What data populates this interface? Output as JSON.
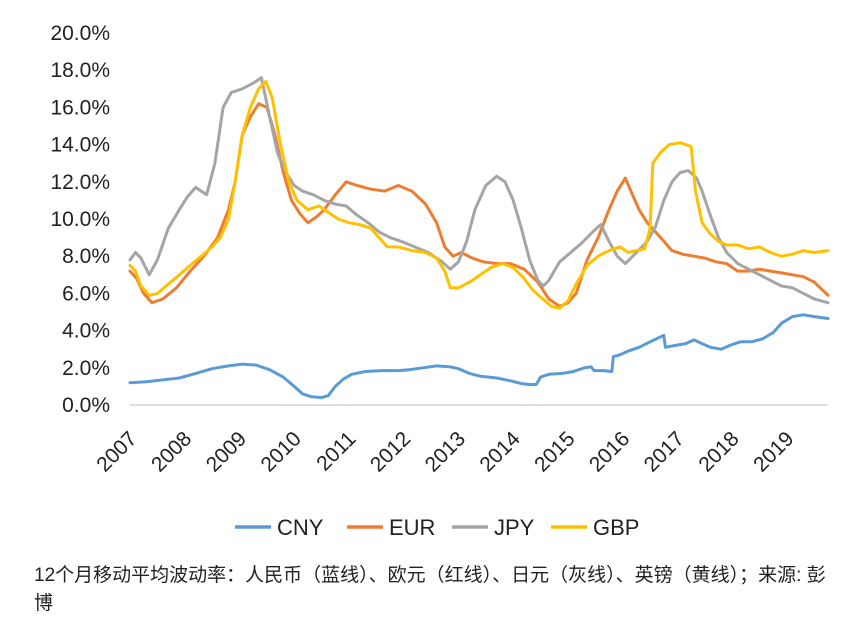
{
  "chart_data": {
    "type": "line",
    "title": "",
    "xlabel": "",
    "ylabel": "",
    "ylim": [
      0,
      20
    ],
    "xlim": [
      2007.0,
      2019.75
    ],
    "y_ticks": [
      "0.0%",
      "2.0%",
      "4.0%",
      "6.0%",
      "8.0%",
      "10.0%",
      "12.0%",
      "14.0%",
      "16.0%",
      "18.0%",
      "20.0%"
    ],
    "x_ticks": [
      "2007",
      "2008",
      "2009",
      "2010",
      "2011",
      "2012",
      "2013",
      "2014",
      "2015",
      "2016",
      "2017",
      "2018",
      "2019"
    ],
    "grid": false,
    "legend_position": "bottom",
    "series": [
      {
        "name": "CNY",
        "color": "#5B9BD5",
        "points": [
          [
            2007.0,
            1.2
          ],
          [
            2007.3,
            1.25
          ],
          [
            2007.6,
            1.35
          ],
          [
            2007.9,
            1.45
          ],
          [
            2008.2,
            1.7
          ],
          [
            2008.5,
            1.95
          ],
          [
            2008.8,
            2.1
          ],
          [
            2009.05,
            2.2
          ],
          [
            2009.3,
            2.15
          ],
          [
            2009.55,
            1.9
          ],
          [
            2009.8,
            1.5
          ],
          [
            2010.0,
            1.0
          ],
          [
            2010.15,
            0.6
          ],
          [
            2010.3,
            0.45
          ],
          [
            2010.5,
            0.4
          ],
          [
            2010.62,
            0.5
          ],
          [
            2010.75,
            1.0
          ],
          [
            2010.9,
            1.4
          ],
          [
            2011.05,
            1.65
          ],
          [
            2011.3,
            1.8
          ],
          [
            2011.6,
            1.85
          ],
          [
            2011.9,
            1.85
          ],
          [
            2012.1,
            1.9
          ],
          [
            2012.35,
            2.0
          ],
          [
            2012.6,
            2.1
          ],
          [
            2012.85,
            2.05
          ],
          [
            2013.0,
            1.95
          ],
          [
            2013.2,
            1.7
          ],
          [
            2013.4,
            1.55
          ],
          [
            2013.7,
            1.45
          ],
          [
            2013.95,
            1.3
          ],
          [
            2014.15,
            1.15
          ],
          [
            2014.3,
            1.1
          ],
          [
            2014.42,
            1.1
          ],
          [
            2014.5,
            1.5
          ],
          [
            2014.65,
            1.65
          ],
          [
            2014.9,
            1.7
          ],
          [
            2015.1,
            1.8
          ],
          [
            2015.3,
            2.0
          ],
          [
            2015.42,
            2.05
          ],
          [
            2015.48,
            1.85
          ],
          [
            2015.65,
            1.85
          ],
          [
            2015.8,
            1.8
          ],
          [
            2015.83,
            2.6
          ],
          [
            2015.95,
            2.7
          ],
          [
            2016.1,
            2.9
          ],
          [
            2016.3,
            3.1
          ],
          [
            2016.5,
            3.4
          ],
          [
            2016.75,
            3.75
          ],
          [
            2016.78,
            3.1
          ],
          [
            2016.95,
            3.2
          ],
          [
            2017.15,
            3.3
          ],
          [
            2017.3,
            3.5
          ],
          [
            2017.45,
            3.3
          ],
          [
            2017.6,
            3.1
          ],
          [
            2017.8,
            3.0
          ],
          [
            2017.95,
            3.2
          ],
          [
            2018.15,
            3.4
          ],
          [
            2018.35,
            3.4
          ],
          [
            2018.55,
            3.55
          ],
          [
            2018.75,
            3.9
          ],
          [
            2018.9,
            4.4
          ],
          [
            2019.1,
            4.75
          ],
          [
            2019.3,
            4.85
          ],
          [
            2019.5,
            4.75
          ],
          [
            2019.75,
            4.65
          ]
        ]
      },
      {
        "name": "EUR",
        "color": "#ED7D31",
        "points": [
          [
            2007.0,
            7.2
          ],
          [
            2007.12,
            6.8
          ],
          [
            2007.25,
            6.0
          ],
          [
            2007.4,
            5.5
          ],
          [
            2007.6,
            5.7
          ],
          [
            2007.85,
            6.3
          ],
          [
            2008.1,
            7.2
          ],
          [
            2008.35,
            8.0
          ],
          [
            2008.6,
            9.0
          ],
          [
            2008.8,
            10.5
          ],
          [
            2008.92,
            12.0
          ],
          [
            2009.05,
            14.5
          ],
          [
            2009.2,
            15.5
          ],
          [
            2009.35,
            16.2
          ],
          [
            2009.5,
            16.0
          ],
          [
            2009.65,
            14.5
          ],
          [
            2009.8,
            12.5
          ],
          [
            2009.95,
            11.0
          ],
          [
            2010.1,
            10.3
          ],
          [
            2010.25,
            9.8
          ],
          [
            2010.4,
            10.1
          ],
          [
            2010.55,
            10.5
          ],
          [
            2010.75,
            11.3
          ],
          [
            2010.95,
            12.0
          ],
          [
            2011.15,
            11.8
          ],
          [
            2011.4,
            11.6
          ],
          [
            2011.65,
            11.5
          ],
          [
            2011.9,
            11.8
          ],
          [
            2012.15,
            11.5
          ],
          [
            2012.4,
            10.8
          ],
          [
            2012.6,
            9.8
          ],
          [
            2012.75,
            8.5
          ],
          [
            2012.9,
            8.0
          ],
          [
            2013.05,
            8.2
          ],
          [
            2013.25,
            7.9
          ],
          [
            2013.45,
            7.7
          ],
          [
            2013.7,
            7.6
          ],
          [
            2013.95,
            7.6
          ],
          [
            2014.2,
            7.3
          ],
          [
            2014.45,
            6.6
          ],
          [
            2014.65,
            5.7
          ],
          [
            2014.85,
            5.3
          ],
          [
            2015.0,
            5.5
          ],
          [
            2015.15,
            6.0
          ],
          [
            2015.35,
            7.8
          ],
          [
            2015.55,
            9.0
          ],
          [
            2015.75,
            10.5
          ],
          [
            2015.9,
            11.5
          ],
          [
            2016.05,
            12.2
          ],
          [
            2016.15,
            11.5
          ],
          [
            2016.3,
            10.5
          ],
          [
            2016.45,
            9.8
          ],
          [
            2016.6,
            9.3
          ],
          [
            2016.75,
            8.8
          ],
          [
            2016.9,
            8.3
          ],
          [
            2017.1,
            8.1
          ],
          [
            2017.3,
            8.0
          ],
          [
            2017.5,
            7.9
          ],
          [
            2017.7,
            7.7
          ],
          [
            2017.9,
            7.6
          ],
          [
            2018.1,
            7.2
          ],
          [
            2018.3,
            7.2
          ],
          [
            2018.5,
            7.3
          ],
          [
            2018.7,
            7.2
          ],
          [
            2018.9,
            7.1
          ],
          [
            2019.1,
            7.0
          ],
          [
            2019.3,
            6.9
          ],
          [
            2019.5,
            6.6
          ],
          [
            2019.75,
            5.9
          ]
        ]
      },
      {
        "name": "JPY",
        "color": "#A5A5A5",
        "points": [
          [
            2007.0,
            7.8
          ],
          [
            2007.1,
            8.2
          ],
          [
            2007.2,
            7.9
          ],
          [
            2007.35,
            7.0
          ],
          [
            2007.5,
            7.8
          ],
          [
            2007.7,
            9.5
          ],
          [
            2007.9,
            10.5
          ],
          [
            2008.05,
            11.2
          ],
          [
            2008.2,
            11.7
          ],
          [
            2008.4,
            11.3
          ],
          [
            2008.55,
            13.0
          ],
          [
            2008.7,
            16.0
          ],
          [
            2008.85,
            16.8
          ],
          [
            2009.05,
            17.0
          ],
          [
            2009.25,
            17.3
          ],
          [
            2009.4,
            17.6
          ],
          [
            2009.55,
            15.5
          ],
          [
            2009.7,
            13.5
          ],
          [
            2009.85,
            12.5
          ],
          [
            2010.0,
            11.8
          ],
          [
            2010.15,
            11.5
          ],
          [
            2010.35,
            11.3
          ],
          [
            2010.55,
            11.0
          ],
          [
            2010.75,
            10.8
          ],
          [
            2010.95,
            10.7
          ],
          [
            2011.15,
            10.2
          ],
          [
            2011.35,
            9.8
          ],
          [
            2011.55,
            9.3
          ],
          [
            2011.75,
            9.0
          ],
          [
            2011.95,
            8.8
          ],
          [
            2012.2,
            8.5
          ],
          [
            2012.45,
            8.2
          ],
          [
            2012.7,
            7.7
          ],
          [
            2012.85,
            7.3
          ],
          [
            2013.0,
            7.7
          ],
          [
            2013.15,
            8.8
          ],
          [
            2013.3,
            10.5
          ],
          [
            2013.5,
            11.8
          ],
          [
            2013.7,
            12.3
          ],
          [
            2013.85,
            12.0
          ],
          [
            2014.0,
            11.0
          ],
          [
            2014.15,
            9.5
          ],
          [
            2014.3,
            7.8
          ],
          [
            2014.45,
            6.7
          ],
          [
            2014.55,
            6.4
          ],
          [
            2014.65,
            6.7
          ],
          [
            2014.85,
            7.7
          ],
          [
            2015.05,
            8.2
          ],
          [
            2015.25,
            8.7
          ],
          [
            2015.45,
            9.3
          ],
          [
            2015.6,
            9.7
          ],
          [
            2015.75,
            8.8
          ],
          [
            2015.9,
            8.0
          ],
          [
            2016.05,
            7.6
          ],
          [
            2016.25,
            8.2
          ],
          [
            2016.45,
            8.8
          ],
          [
            2016.6,
            9.6
          ],
          [
            2016.75,
            11.0
          ],
          [
            2016.9,
            12.0
          ],
          [
            2017.05,
            12.5
          ],
          [
            2017.2,
            12.6
          ],
          [
            2017.35,
            12.2
          ],
          [
            2017.45,
            11.5
          ],
          [
            2017.6,
            10.2
          ],
          [
            2017.75,
            9.0
          ],
          [
            2017.9,
            8.2
          ],
          [
            2018.1,
            7.6
          ],
          [
            2018.3,
            7.3
          ],
          [
            2018.5,
            7.0
          ],
          [
            2018.7,
            6.7
          ],
          [
            2018.9,
            6.4
          ],
          [
            2019.1,
            6.3
          ],
          [
            2019.3,
            6.0
          ],
          [
            2019.5,
            5.7
          ],
          [
            2019.75,
            5.5
          ]
        ]
      },
      {
        "name": "GBP",
        "color": "#FFC000",
        "points": [
          [
            2007.0,
            7.5
          ],
          [
            2007.1,
            7.2
          ],
          [
            2007.2,
            6.4
          ],
          [
            2007.35,
            5.9
          ],
          [
            2007.5,
            6.0
          ],
          [
            2007.7,
            6.5
          ],
          [
            2007.9,
            7.0
          ],
          [
            2008.1,
            7.5
          ],
          [
            2008.3,
            8.0
          ],
          [
            2008.5,
            8.5
          ],
          [
            2008.65,
            9.0
          ],
          [
            2008.8,
            10.0
          ],
          [
            2008.92,
            12.0
          ],
          [
            2009.05,
            14.5
          ],
          [
            2009.2,
            16.0
          ],
          [
            2009.35,
            17.0
          ],
          [
            2009.48,
            17.4
          ],
          [
            2009.6,
            16.5
          ],
          [
            2009.75,
            14.0
          ],
          [
            2009.9,
            12.0
          ],
          [
            2010.05,
            11.0
          ],
          [
            2010.25,
            10.5
          ],
          [
            2010.45,
            10.7
          ],
          [
            2010.65,
            10.3
          ],
          [
            2010.8,
            10.0
          ],
          [
            2011.0,
            9.8
          ],
          [
            2011.2,
            9.7
          ],
          [
            2011.4,
            9.5
          ],
          [
            2011.55,
            9.0
          ],
          [
            2011.7,
            8.5
          ],
          [
            2011.9,
            8.5
          ],
          [
            2012.15,
            8.3
          ],
          [
            2012.4,
            8.2
          ],
          [
            2012.6,
            7.9
          ],
          [
            2012.75,
            7.2
          ],
          [
            2012.85,
            6.3
          ],
          [
            2013.0,
            6.3
          ],
          [
            2013.2,
            6.6
          ],
          [
            2013.4,
            7.0
          ],
          [
            2013.6,
            7.4
          ],
          [
            2013.8,
            7.6
          ],
          [
            2014.0,
            7.4
          ],
          [
            2014.2,
            6.8
          ],
          [
            2014.35,
            6.2
          ],
          [
            2014.5,
            5.8
          ],
          [
            2014.7,
            5.3
          ],
          [
            2014.85,
            5.2
          ],
          [
            2015.0,
            5.6
          ],
          [
            2015.15,
            6.5
          ],
          [
            2015.35,
            7.5
          ],
          [
            2015.55,
            8.0
          ],
          [
            2015.75,
            8.3
          ],
          [
            2015.95,
            8.5
          ],
          [
            2016.1,
            8.2
          ],
          [
            2016.25,
            8.3
          ],
          [
            2016.4,
            8.4
          ],
          [
            2016.5,
            9.5
          ],
          [
            2016.55,
            13.0
          ],
          [
            2016.7,
            13.6
          ],
          [
            2016.85,
            14.0
          ],
          [
            2017.05,
            14.1
          ],
          [
            2017.25,
            13.9
          ],
          [
            2017.33,
            11.5
          ],
          [
            2017.45,
            9.8
          ],
          [
            2017.6,
            9.2
          ],
          [
            2017.75,
            8.8
          ],
          [
            2017.9,
            8.6
          ],
          [
            2018.1,
            8.6
          ],
          [
            2018.3,
            8.4
          ],
          [
            2018.5,
            8.5
          ],
          [
            2018.7,
            8.2
          ],
          [
            2018.9,
            8.0
          ],
          [
            2019.1,
            8.1
          ],
          [
            2019.3,
            8.3
          ],
          [
            2019.5,
            8.2
          ],
          [
            2019.75,
            8.3
          ]
        ]
      }
    ]
  },
  "caption": "12个月移动平均波动率：人民币（蓝线）、欧元（红线）、日元（灰线）、英镑（黄线）；来源: 彭博"
}
